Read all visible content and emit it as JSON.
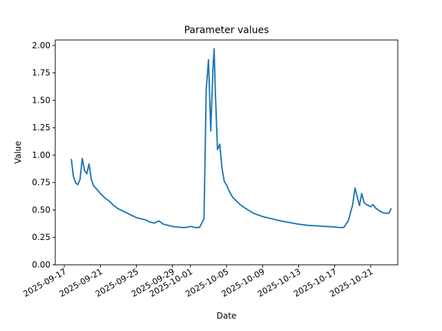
{
  "chart_data": {
    "type": "line",
    "title": "Parameter values",
    "xlabel": "Date",
    "ylabel": "Value",
    "x_axis_type": "date",
    "xlim": [
      "2025-09-16",
      "2025-10-24"
    ],
    "ylim": [
      0,
      2.05
    ],
    "x_ticks": [
      "2025-09-17",
      "2025-09-21",
      "2025-09-25",
      "2025-09-29",
      "2025-10-01",
      "2025-10-05",
      "2025-10-09",
      "2025-10-13",
      "2025-10-17",
      "2025-10-21"
    ],
    "y_ticks": [
      "0.00",
      "0.25",
      "0.50",
      "0.75",
      "1.00",
      "1.25",
      "1.50",
      "1.75",
      "2.00"
    ],
    "grid": false,
    "line_color": "#1f77b4",
    "series": [
      {
        "x": [
          "2025-09-17 19:00",
          "2025-09-18 00:00",
          "2025-09-18 06:00",
          "2025-09-18 12:00",
          "2025-09-18 18:00",
          "2025-09-19 00:00",
          "2025-09-19 06:00",
          "2025-09-19 12:00",
          "2025-09-19 18:00",
          "2025-09-20 00:00",
          "2025-09-20 06:00",
          "2025-09-20 12:00",
          "2025-09-21 00:00",
          "2025-09-21 12:00",
          "2025-09-22 00:00",
          "2025-09-22 12:00",
          "2025-09-23 00:00",
          "2025-09-23 12:00",
          "2025-09-24 00:00",
          "2025-09-24 12:00",
          "2025-09-25 00:00",
          "2025-09-26 00:00",
          "2025-09-26 12:00",
          "2025-09-27 00:00",
          "2025-09-27 06:00",
          "2025-09-27 12:00",
          "2025-09-28 00:00",
          "2025-09-28 12:00",
          "2025-09-29 00:00",
          "2025-09-30 00:00",
          "2025-09-30 12:00",
          "2025-10-01 00:00",
          "2025-10-01 12:00",
          "2025-10-02 00:00",
          "2025-10-02 12:00",
          "2025-10-02 18:00",
          "2025-10-03 00:00",
          "2025-10-03 06:00",
          "2025-10-03 12:00",
          "2025-10-03 15:00",
          "2025-10-03 18:00",
          "2025-10-04 00:00",
          "2025-10-04 06:00",
          "2025-10-04 12:00",
          "2025-10-04 18:00",
          "2025-10-05 00:00",
          "2025-10-05 06:00",
          "2025-10-05 12:00",
          "2025-10-05 18:00",
          "2025-10-06 00:00",
          "2025-10-06 12:00",
          "2025-10-07 00:00",
          "2025-10-08 00:00",
          "2025-10-09 00:00",
          "2025-10-10 00:00",
          "2025-10-11 00:00",
          "2025-10-12 00:00",
          "2025-10-13 00:00",
          "2025-10-14 00:00",
          "2025-10-15 00:00",
          "2025-10-16 00:00",
          "2025-10-17 00:00",
          "2025-10-17 12:00",
          "2025-10-18 00:00",
          "2025-10-18 12:00",
          "2025-10-19 00:00",
          "2025-10-19 06:00",
          "2025-10-19 12:00",
          "2025-10-19 18:00",
          "2025-10-20 00:00",
          "2025-10-20 06:00",
          "2025-10-20 12:00",
          "2025-10-21 00:00",
          "2025-10-21 06:00",
          "2025-10-21 12:00",
          "2025-10-22 00:00",
          "2025-10-22 12:00",
          "2025-10-23 00:00",
          "2025-10-23 06:00"
        ],
        "values": [
          0.96,
          0.81,
          0.75,
          0.73,
          0.78,
          0.97,
          0.86,
          0.83,
          0.92,
          0.78,
          0.72,
          0.7,
          0.65,
          0.61,
          0.58,
          0.54,
          0.51,
          0.49,
          0.47,
          0.45,
          0.43,
          0.41,
          0.39,
          0.38,
          0.39,
          0.4,
          0.37,
          0.36,
          0.35,
          0.34,
          0.34,
          0.35,
          0.34,
          0.34,
          0.42,
          1.6,
          1.87,
          1.22,
          1.8,
          1.97,
          1.6,
          1.05,
          1.1,
          0.88,
          0.76,
          0.73,
          0.68,
          0.64,
          0.61,
          0.59,
          0.55,
          0.52,
          0.47,
          0.44,
          0.42,
          0.4,
          0.385,
          0.37,
          0.36,
          0.355,
          0.35,
          0.345,
          0.34,
          0.34,
          0.4,
          0.55,
          0.7,
          0.62,
          0.54,
          0.65,
          0.57,
          0.55,
          0.53,
          0.55,
          0.52,
          0.49,
          0.47,
          0.47,
          0.51
        ]
      }
    ]
  }
}
